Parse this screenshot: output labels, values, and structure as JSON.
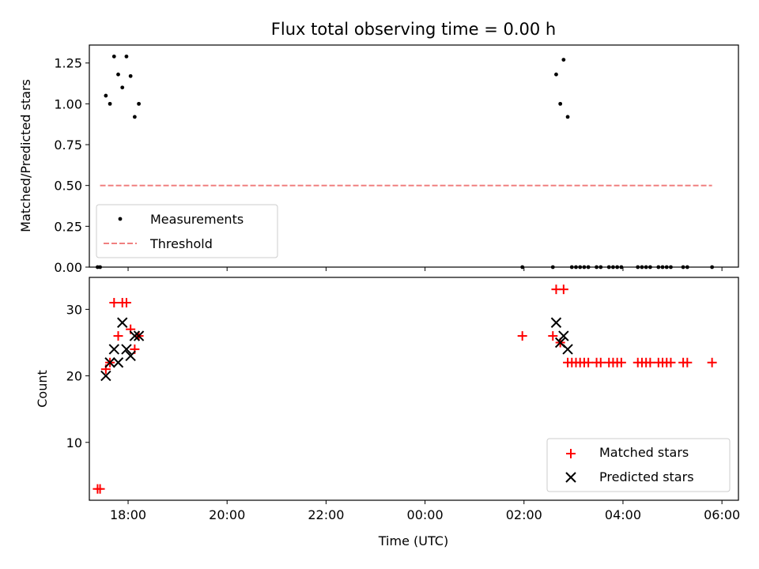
{
  "chart_data": [
    {
      "type": "scatter",
      "title": "Flux total observing time = 0.00 h",
      "xlabel": "",
      "ylabel": "Matched/Predicted stars",
      "xlim": [
        "17:13",
        "06:20"
      ],
      "ylim": [
        0,
        1.36
      ],
      "yticks": [
        0.0,
        0.25,
        0.5,
        0.75,
        1.0,
        1.25
      ],
      "ytick_labels": [
        "0.00",
        "0.25",
        "0.50",
        "0.75",
        "1.00",
        "1.25"
      ],
      "xtick_labels": [],
      "legend": {
        "position": "lower-left",
        "entries": [
          "Measurements",
          "Threshold"
        ]
      },
      "grid": false,
      "series": [
        {
          "name": "Measurements",
          "marker": "dot",
          "color": "#000000",
          "points": [
            {
              "x": "17:23",
              "y": 0.0
            },
            {
              "x": "17:26",
              "y": 0.0
            },
            {
              "x": "17:33",
              "y": 1.05
            },
            {
              "x": "17:38",
              "y": 1.0
            },
            {
              "x": "17:43",
              "y": 1.29
            },
            {
              "x": "17:48",
              "y": 1.18
            },
            {
              "x": "17:53",
              "y": 1.1
            },
            {
              "x": "17:58",
              "y": 1.29
            },
            {
              "x": "18:03",
              "y": 1.17
            },
            {
              "x": "18:08",
              "y": 0.92
            },
            {
              "x": "18:13",
              "y": 1.0
            },
            {
              "x": "01:58",
              "y": 0.0
            },
            {
              "x": "02:35",
              "y": 0.0
            },
            {
              "x": "02:39",
              "y": 1.18
            },
            {
              "x": "02:44",
              "y": 1.0
            },
            {
              "x": "02:48",
              "y": 1.27
            },
            {
              "x": "02:53",
              "y": 0.92
            },
            {
              "x": "02:58",
              "y": 0.0
            },
            {
              "x": "03:03",
              "y": 0.0
            },
            {
              "x": "03:08",
              "y": 0.0
            },
            {
              "x": "03:13",
              "y": 0.0
            },
            {
              "x": "03:18",
              "y": 0.0
            },
            {
              "x": "03:28",
              "y": 0.0
            },
            {
              "x": "03:33",
              "y": 0.0
            },
            {
              "x": "03:43",
              "y": 0.0
            },
            {
              "x": "03:48",
              "y": 0.0
            },
            {
              "x": "03:53",
              "y": 0.0
            },
            {
              "x": "03:58",
              "y": 0.0
            },
            {
              "x": "04:18",
              "y": 0.0
            },
            {
              "x": "04:23",
              "y": 0.0
            },
            {
              "x": "04:28",
              "y": 0.0
            },
            {
              "x": "04:33",
              "y": 0.0
            },
            {
              "x": "04:43",
              "y": 0.0
            },
            {
              "x": "04:48",
              "y": 0.0
            },
            {
              "x": "04:53",
              "y": 0.0
            },
            {
              "x": "04:58",
              "y": 0.0
            },
            {
              "x": "05:13",
              "y": 0.0
            },
            {
              "x": "05:18",
              "y": 0.0
            },
            {
              "x": "05:48",
              "y": 0.0
            }
          ]
        },
        {
          "name": "Threshold",
          "marker": "dashed-line",
          "color": "#f08080",
          "points": [
            {
              "x": "17:26",
              "y": 0.5
            },
            {
              "x": "05:48",
              "y": 0.5
            }
          ]
        }
      ]
    },
    {
      "type": "scatter",
      "title": "",
      "xlabel": "Time (UTC)",
      "ylabel": "Count",
      "xlim": [
        "17:13",
        "06:20"
      ],
      "ylim": [
        1.3,
        34.8
      ],
      "yticks": [
        10,
        20,
        30
      ],
      "ytick_labels": [
        "10",
        "20",
        "30"
      ],
      "xtick_labels": [
        "18:00",
        "20:00",
        "22:00",
        "00:00",
        "02:00",
        "04:00",
        "06:00"
      ],
      "legend": {
        "position": "lower-right",
        "entries": [
          "Matched stars",
          "Predicted stars"
        ]
      },
      "grid": false,
      "series": [
        {
          "name": "Matched stars",
          "marker": "plus",
          "color": "#ff0000",
          "points": [
            {
              "x": "17:23",
              "y": 3
            },
            {
              "x": "17:26",
              "y": 3
            },
            {
              "x": "17:33",
              "y": 21
            },
            {
              "x": "17:38",
              "y": 22
            },
            {
              "x": "17:43",
              "y": 31
            },
            {
              "x": "17:48",
              "y": 26
            },
            {
              "x": "17:53",
              "y": 31
            },
            {
              "x": "17:58",
              "y": 31
            },
            {
              "x": "18:03",
              "y": 27
            },
            {
              "x": "18:08",
              "y": 24
            },
            {
              "x": "18:13",
              "y": 26
            },
            {
              "x": "01:58",
              "y": 26
            },
            {
              "x": "02:35",
              "y": 26
            },
            {
              "x": "02:39",
              "y": 33
            },
            {
              "x": "02:44",
              "y": 25
            },
            {
              "x": "02:48",
              "y": 33
            },
            {
              "x": "02:53",
              "y": 22
            },
            {
              "x": "02:58",
              "y": 22
            },
            {
              "x": "03:03",
              "y": 22
            },
            {
              "x": "03:08",
              "y": 22
            },
            {
              "x": "03:13",
              "y": 22
            },
            {
              "x": "03:18",
              "y": 22
            },
            {
              "x": "03:28",
              "y": 22
            },
            {
              "x": "03:33",
              "y": 22
            },
            {
              "x": "03:43",
              "y": 22
            },
            {
              "x": "03:48",
              "y": 22
            },
            {
              "x": "03:53",
              "y": 22
            },
            {
              "x": "03:58",
              "y": 22
            },
            {
              "x": "04:18",
              "y": 22
            },
            {
              "x": "04:23",
              "y": 22
            },
            {
              "x": "04:28",
              "y": 22
            },
            {
              "x": "04:33",
              "y": 22
            },
            {
              "x": "04:43",
              "y": 22
            },
            {
              "x": "04:48",
              "y": 22
            },
            {
              "x": "04:53",
              "y": 22
            },
            {
              "x": "04:58",
              "y": 22
            },
            {
              "x": "05:13",
              "y": 22
            },
            {
              "x": "05:18",
              "y": 22
            },
            {
              "x": "05:48",
              "y": 22
            }
          ]
        },
        {
          "name": "Predicted stars",
          "marker": "x",
          "color": "#000000",
          "points": [
            {
              "x": "17:33",
              "y": 20
            },
            {
              "x": "17:38",
              "y": 22
            },
            {
              "x": "17:43",
              "y": 24
            },
            {
              "x": "17:48",
              "y": 22
            },
            {
              "x": "17:53",
              "y": 28
            },
            {
              "x": "17:58",
              "y": 24
            },
            {
              "x": "18:03",
              "y": 23
            },
            {
              "x": "18:08",
              "y": 26
            },
            {
              "x": "18:13",
              "y": 26
            },
            {
              "x": "02:39",
              "y": 28
            },
            {
              "x": "02:44",
              "y": 25
            },
            {
              "x": "02:48",
              "y": 26
            },
            {
              "x": "02:53",
              "y": 24
            }
          ]
        }
      ]
    }
  ]
}
